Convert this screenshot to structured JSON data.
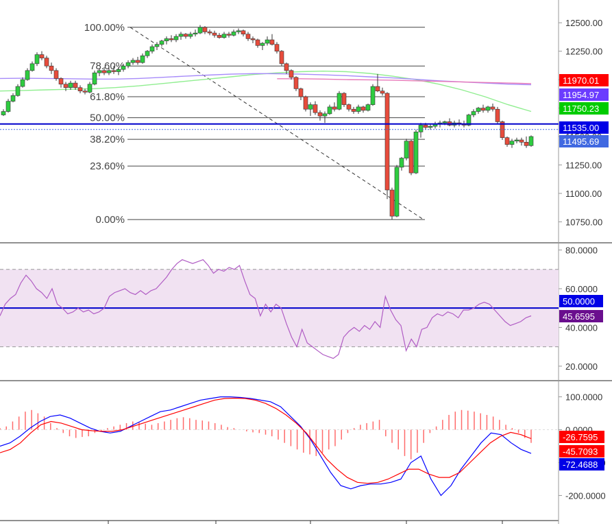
{
  "chart_data": [
    {
      "type": "candlestick",
      "panel": "price",
      "yaxis_ticks": [
        "12500.00",
        "12250.00",
        "12000.00",
        "11750.00",
        "11500.00",
        "11250.00",
        "11000.00",
        "10750.00"
      ],
      "ylim": [
        10620,
        12700
      ],
      "fibonacci": {
        "levels": [
          {
            "label": "100.00%",
            "value": 12460
          },
          {
            "label": "78.60%",
            "value": 12120
          },
          {
            "label": "61.80%",
            "value": 11850
          },
          {
            "label": "50.00%",
            "value": 11665
          },
          {
            "label": "38.20%",
            "value": 11475
          },
          {
            "label": "23.60%",
            "value": 11240
          },
          {
            "label": "0.00%",
            "value": 10770
          }
        ]
      },
      "price_badges": [
        {
          "label": "11970.01",
          "value": 11970,
          "color": "#ff0000"
        },
        {
          "label": "11954.97",
          "value": 11954,
          "color": "#6b3cff"
        },
        {
          "label": "11750.23",
          "value": 11750,
          "color": "#00cc00"
        },
        {
          "label": "11535.00",
          "value": 11535,
          "color": "#0000e6"
        },
        {
          "label": "11495.69",
          "value": 11496,
          "color": "#4169e1"
        }
      ],
      "horizontal_line": {
        "value": 11610,
        "color": "#0000cc"
      },
      "series": [
        {
          "name": "",
          "color": "#90ee90",
          "values": [
            11900,
            11905,
            11910,
            11915,
            11920,
            11930,
            11945,
            11965,
            11985,
            12005,
            12025,
            12045,
            12060,
            12070,
            12075,
            12070,
            12055,
            12030,
            12000,
            11960,
            11910,
            11850,
            11780,
            11720
          ]
        },
        {
          "name": "",
          "color": "#a78bfa",
          "values": [
            12010,
            12012,
            12010,
            12008,
            12005,
            12005,
            12010,
            12020,
            12030,
            12040,
            12048,
            12053,
            12052,
            12048,
            12042,
            12035,
            12025,
            12015,
            12003,
            11990,
            11980,
            11970,
            11960,
            11955
          ]
        },
        {
          "name": "",
          "color": "#e879b9",
          "values": [
            null,
            null,
            null,
            null,
            null,
            null,
            null,
            null,
            null,
            null,
            null,
            null,
            12008,
            12008,
            12005,
            12000,
            11998,
            11995,
            11990,
            11985,
            11980,
            11975,
            11970,
            11965
          ]
        }
      ],
      "candles": [
        [
          11690,
          11740,
          11680,
          11720
        ],
        [
          11720,
          11830,
          11710,
          11810
        ],
        [
          11810,
          11880,
          11800,
          11860
        ],
        [
          11860,
          11960,
          11850,
          11940
        ],
        [
          11940,
          12020,
          11930,
          12000
        ],
        [
          12000,
          12100,
          11990,
          12080
        ],
        [
          12080,
          12160,
          12070,
          12140
        ],
        [
          12140,
          12240,
          12120,
          12220
        ],
        [
          12220,
          12250,
          12170,
          12190
        ],
        [
          12190,
          12210,
          12100,
          12120
        ],
        [
          12120,
          12150,
          12050,
          12080
        ],
        [
          12080,
          12100,
          11990,
          12010
        ],
        [
          12010,
          12020,
          11930,
          11960
        ],
        [
          11960,
          11980,
          11900,
          11930
        ],
        [
          11930,
          11990,
          11910,
          11970
        ],
        [
          11970,
          11990,
          11910,
          11930
        ],
        [
          11930,
          11950,
          11880,
          11900
        ],
        [
          11900,
          11920,
          11870,
          11890
        ],
        [
          11890,
          11980,
          11880,
          11960
        ],
        [
          11960,
          12080,
          11950,
          12060
        ],
        [
          12060,
          12100,
          12030,
          12080
        ],
        [
          12080,
          12110,
          12040,
          12060
        ],
        [
          12060,
          12100,
          12040,
          12080
        ],
        [
          12080,
          12120,
          12050,
          12070
        ],
        [
          12070,
          12110,
          12040,
          12090
        ],
        [
          12090,
          12140,
          12070,
          12120
        ],
        [
          12120,
          12170,
          12100,
          12150
        ],
        [
          12150,
          12190,
          12130,
          12170
        ],
        [
          12170,
          12200,
          12130,
          12150
        ],
        [
          12150,
          12230,
          12140,
          12210
        ],
        [
          12210,
          12260,
          12190,
          12250
        ],
        [
          12250,
          12310,
          12230,
          12290
        ],
        [
          12290,
          12330,
          12260,
          12310
        ],
        [
          12310,
          12350,
          12290,
          12340
        ],
        [
          12340,
          12380,
          12310,
          12360
        ],
        [
          12360,
          12390,
          12330,
          12350
        ],
        [
          12350,
          12400,
          12330,
          12380
        ],
        [
          12380,
          12420,
          12350,
          12400
        ],
        [
          12400,
          12410,
          12360,
          12380
        ],
        [
          12380,
          12420,
          12360,
          12400
        ],
        [
          12400,
          12440,
          12380,
          12410
        ],
        [
          12410,
          12480,
          12400,
          12460
        ],
        [
          12460,
          12470,
          12400,
          12420
        ],
        [
          12420,
          12440,
          12390,
          12410
        ],
        [
          12410,
          12430,
          12370,
          12390
        ],
        [
          12390,
          12410,
          12360,
          12370
        ],
        [
          12370,
          12420,
          12360,
          12400
        ],
        [
          12400,
          12420,
          12370,
          12390
        ],
        [
          12390,
          12440,
          12380,
          12420
        ],
        [
          12420,
          12450,
          12400,
          12430
        ],
        [
          12430,
          12440,
          12380,
          12400
        ],
        [
          12400,
          12420,
          12340,
          12360
        ],
        [
          12360,
          12380,
          12320,
          12350
        ],
        [
          12350,
          12360,
          12280,
          12300
        ],
        [
          12300,
          12330,
          12260,
          12320
        ],
        [
          12320,
          12380,
          12300,
          12350
        ],
        [
          12350,
          12400,
          12300,
          12310
        ],
        [
          12310,
          12330,
          12230,
          12250
        ],
        [
          12250,
          12260,
          12120,
          12140
        ],
        [
          12140,
          12150,
          12050,
          12080
        ],
        [
          12080,
          12090,
          12000,
          12020
        ],
        [
          12020,
          12030,
          11900,
          11920
        ],
        [
          11920,
          11930,
          11820,
          11850
        ],
        [
          11850,
          11860,
          11720,
          11740
        ],
        [
          11740,
          11800,
          11680,
          11780
        ],
        [
          11780,
          11810,
          11690,
          11710
        ],
        [
          11710,
          11730,
          11640,
          11680
        ],
        [
          11680,
          11720,
          11620,
          11700
        ],
        [
          11700,
          11780,
          11690,
          11760
        ],
        [
          11760,
          11800,
          11720,
          11740
        ],
        [
          11740,
          11900,
          11730,
          11880
        ],
        [
          11880,
          11890,
          11760,
          11780
        ],
        [
          11780,
          11790,
          11720,
          11740
        ],
        [
          11740,
          11760,
          11700,
          11720
        ],
        [
          11720,
          11780,
          11700,
          11760
        ],
        [
          11760,
          11770,
          11710,
          11730
        ],
        [
          11730,
          11790,
          11720,
          11780
        ],
        [
          11780,
          11960,
          11770,
          11940
        ],
        [
          11940,
          12050,
          11890,
          11900
        ],
        [
          11900,
          11930,
          11860,
          11880
        ],
        [
          11880,
          11890,
          10950,
          11030
        ],
        [
          11030,
          11050,
          10770,
          10800
        ],
        [
          10800,
          11250,
          10790,
          11230
        ],
        [
          11230,
          11320,
          11200,
          11310
        ],
        [
          11310,
          11480,
          11290,
          11460
        ],
        [
          11460,
          11470,
          11160,
          11180
        ],
        [
          11180,
          11560,
          11170,
          11540
        ],
        [
          11540,
          11620,
          11490,
          11600
        ],
        [
          11600,
          11620,
          11560,
          11580
        ],
        [
          11580,
          11610,
          11560,
          11590
        ],
        [
          11590,
          11630,
          11570,
          11610
        ],
        [
          11610,
          11640,
          11580,
          11620
        ],
        [
          11620,
          11640,
          11600,
          11630
        ],
        [
          11630,
          11660,
          11590,
          11600
        ],
        [
          11600,
          11640,
          11580,
          11620
        ],
        [
          11620,
          11650,
          11590,
          11610
        ],
        [
          11610,
          11640,
          11580,
          11600
        ],
        [
          11600,
          11700,
          11590,
          11690
        ],
        [
          11690,
          11740,
          11670,
          11720
        ],
        [
          11720,
          11760,
          11700,
          11750
        ],
        [
          11750,
          11780,
          11710,
          11730
        ],
        [
          11730,
          11770,
          11710,
          11760
        ],
        [
          11760,
          11790,
          11720,
          11740
        ],
        [
          11740,
          11760,
          11610,
          11630
        ],
        [
          11630,
          11640,
          11470,
          11490
        ],
        [
          11490,
          11500,
          11410,
          11430
        ],
        [
          11430,
          11480,
          11400,
          11460
        ],
        [
          11460,
          11490,
          11440,
          11470
        ],
        [
          11470,
          11490,
          11420,
          11450
        ],
        [
          11450,
          11500,
          11400,
          11420
        ],
        [
          11420,
          11510,
          11410,
          11500
        ]
      ]
    },
    {
      "type": "line",
      "panel": "rsi",
      "yaxis_ticks": [
        "80.0000",
        "60.0000",
        "40.0000",
        "20.0000"
      ],
      "ylim": [
        15,
        83
      ],
      "band": [
        30,
        70
      ],
      "midline": 50,
      "badges": [
        {
          "label": "50.0000",
          "value": 50,
          "color": "#0000e6"
        },
        {
          "label": "45.6595",
          "value": 45.66,
          "color": "#6a0e8e"
        }
      ],
      "series": [
        {
          "name": "",
          "color": "#b05cc4",
          "values": [
            46,
            52,
            55,
            57,
            63,
            67,
            64,
            60,
            58,
            55,
            60,
            52,
            50,
            47,
            48,
            50,
            48,
            49,
            47,
            48,
            50,
            56,
            58,
            59,
            60,
            58,
            57,
            59,
            57,
            59,
            60,
            63,
            66,
            70,
            73,
            75,
            74,
            73,
            74,
            75,
            72,
            68,
            70,
            69,
            71,
            70,
            72,
            64,
            57,
            55,
            46,
            52,
            48,
            52,
            50,
            42,
            35,
            30,
            39,
            32,
            30,
            28,
            26,
            25,
            24,
            26,
            35,
            38,
            40,
            38,
            41,
            39,
            43,
            40,
            56,
            49,
            44,
            41,
            28,
            34,
            30,
            39,
            40,
            45,
            47,
            46,
            48,
            47,
            45,
            49,
            49,
            50,
            52,
            53,
            52,
            49,
            46,
            43,
            41,
            42,
            43,
            45,
            46
          ]
        }
      ]
    },
    {
      "type": "bar+line",
      "panel": "macd",
      "yaxis_ticks": [
        "100.0000",
        "0.0000",
        "-100.0000",
        "-200.0000"
      ],
      "ylim": [
        -270,
        145
      ],
      "badges": [
        {
          "label": "-26.7595",
          "value": -26.76,
          "color": "#ff0000"
        },
        {
          "label": "-45.7093",
          "value": -45.71,
          "color": "#ff0000"
        },
        {
          "label": "-72.4688",
          "value": -72.47,
          "color": "#0000e6"
        }
      ],
      "histogram": [
        5,
        10,
        25,
        40,
        55,
        60,
        50,
        40,
        20,
        5,
        -10,
        -20,
        -25,
        -22,
        -20,
        -10,
        -5,
        5,
        10,
        15,
        20,
        25,
        22,
        18,
        15,
        20,
        25,
        30,
        35,
        38,
        35,
        30,
        28,
        25,
        20,
        15,
        8,
        5,
        0,
        -5,
        -8,
        -10,
        -15,
        -20,
        -30,
        -40,
        -50,
        -60,
        -70,
        -75,
        -80,
        -70,
        -60,
        -50,
        -30,
        -10,
        5,
        15,
        20,
        25,
        30,
        -20,
        -40,
        -60,
        -80,
        -90,
        -70,
        -40,
        -10,
        10,
        30,
        45,
        55,
        60,
        58,
        55,
        50,
        45,
        40,
        30,
        15,
        5,
        -10,
        -25,
        -40
      ],
      "series": [
        {
          "name": "",
          "color": "#0000ff",
          "values": [
            -50,
            -40,
            -20,
            5,
            25,
            40,
            45,
            35,
            20,
            5,
            -5,
            -10,
            -5,
            10,
            25,
            40,
            55,
            60,
            70,
            80,
            90,
            95,
            100,
            100,
            98,
            95,
            90,
            85,
            70,
            40,
            10,
            -30,
            -80,
            -130,
            -170,
            -180,
            -170,
            -165,
            -165,
            -160,
            -150,
            -100,
            -80,
            -150,
            -200,
            -170,
            -120,
            -80,
            -40,
            -10,
            -15,
            -40,
            -60,
            -72
          ]
        },
        {
          "name": "",
          "color": "#ff0000",
          "values": [
            -70,
            -60,
            -40,
            -10,
            15,
            25,
            20,
            10,
            0,
            -3,
            -5,
            -5,
            0,
            10,
            20,
            30,
            40,
            50,
            60,
            70,
            80,
            90,
            95,
            96,
            95,
            90,
            80,
            65,
            45,
            20,
            -10,
            -50,
            -90,
            -120,
            -145,
            -160,
            -163,
            -160,
            -150,
            -135,
            -120,
            -120,
            -135,
            -145,
            -145,
            -130,
            -100,
            -70,
            -40,
            -20,
            -8,
            -15,
            -27
          ]
        }
      ],
      "xaxis_ticks_count": 5
    }
  ]
}
